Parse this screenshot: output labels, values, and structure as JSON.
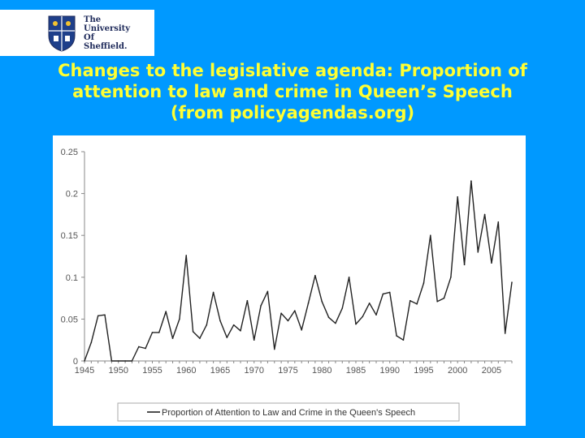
{
  "logo": {
    "lines": [
      "The",
      "University",
      "Of",
      "Sheffield."
    ]
  },
  "title": {
    "lines": [
      "Changes to the legislative agenda: Proportion of",
      "attention to law and crime in Queen’s Speech",
      "(from policyagendas.org)"
    ]
  },
  "colors": {
    "background": "#0099ff",
    "title": "#ffff33",
    "line": "#222222"
  },
  "chart_data": {
    "type": "line",
    "title": "",
    "xlabel": "",
    "ylabel": "",
    "xlim": [
      1945,
      2008
    ],
    "ylim": [
      0,
      0.25
    ],
    "xticks": [
      1945,
      1950,
      1955,
      1960,
      1965,
      1970,
      1975,
      1980,
      1985,
      1990,
      1995,
      2000,
      2005
    ],
    "xtick_labels": [
      "1945",
      "1950",
      "1955",
      "1960",
      "1965",
      "1970",
      "1975",
      "1980",
      "1985",
      "1990",
      "1995",
      "2000",
      "2005"
    ],
    "yticks": [
      0,
      0.05,
      0.1,
      0.15,
      0.2,
      0.25
    ],
    "ytick_labels": [
      "0",
      "0.05",
      "0.1",
      "0.15",
      "0.2",
      "0.25"
    ],
    "grid": false,
    "legend_position": "bottom",
    "series": [
      {
        "name": "Proportion of Attention to Law and Crime in the Queen's Speech",
        "x": [
          1945,
          1946,
          1947,
          1948,
          1949,
          1950,
          1951,
          1952,
          1953,
          1954,
          1955,
          1956,
          1957,
          1958,
          1959,
          1960,
          1961,
          1962,
          1963,
          1964,
          1965,
          1966,
          1967,
          1968,
          1969,
          1970,
          1971,
          1972,
          1973,
          1974,
          1975,
          1976,
          1977,
          1978,
          1979,
          1980,
          1981,
          1982,
          1983,
          1984,
          1985,
          1986,
          1987,
          1988,
          1989,
          1990,
          1991,
          1992,
          1993,
          1994,
          1995,
          1996,
          1997,
          1998,
          1999,
          2000,
          2001,
          2002,
          2003,
          2004,
          2005,
          2006,
          2007,
          2008
        ],
        "values": [
          0,
          0.022,
          0.054,
          0.055,
          0,
          0,
          0,
          0,
          0.017,
          0.015,
          0.034,
          0.034,
          0.059,
          0.027,
          0.05,
          0.126,
          0.035,
          0.027,
          0.043,
          0.082,
          0.048,
          0.028,
          0.043,
          0.036,
          0.072,
          0.025,
          0.066,
          0.083,
          0.014,
          0.057,
          0.048,
          0.06,
          0.037,
          0.069,
          0.102,
          0.071,
          0.052,
          0.045,
          0.063,
          0.1,
          0.044,
          0.053,
          0.069,
          0.055,
          0.08,
          0.082,
          0.03,
          0.025,
          0.072,
          0.068,
          0.093,
          0.15,
          0.071,
          0.075,
          0.1,
          0.196,
          0.115,
          0.215,
          0.13,
          0.175,
          0.117,
          0.166,
          0.033,
          0.094
        ]
      }
    ]
  }
}
